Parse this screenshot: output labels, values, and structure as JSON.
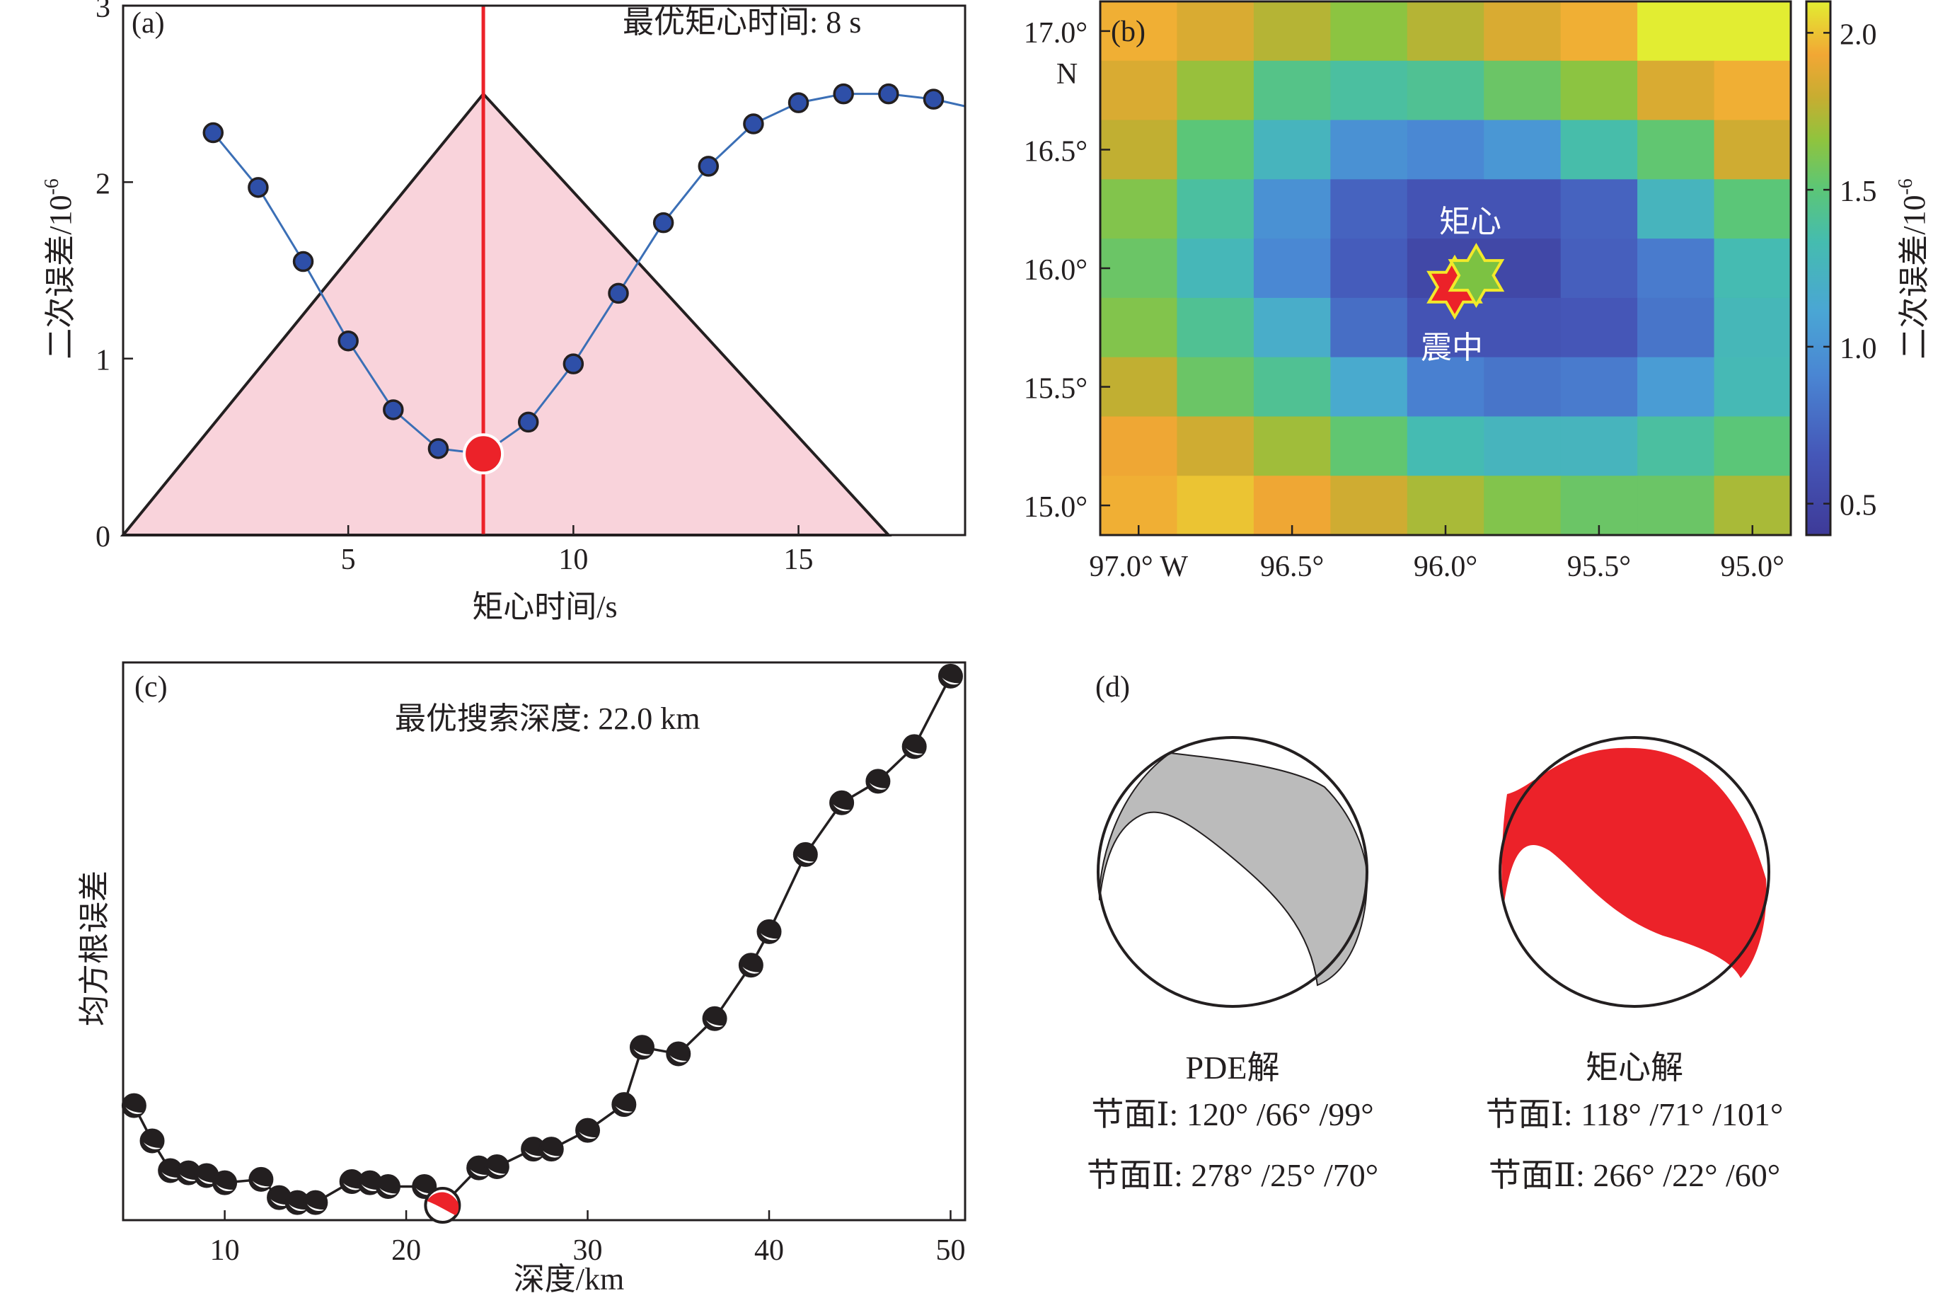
{
  "chart_data": [
    {
      "panel": "(a)",
      "type": "line",
      "title": "",
      "annotation": "最优矩心时间: 8 s",
      "xlabel": "矩心时间/s",
      "ylabel": "二次误差/10⁻⁶",
      "xlim": [
        0,
        18.7
      ],
      "ylim": [
        0,
        3
      ],
      "xticks": [
        5,
        10,
        15
      ],
      "yticks": [
        0,
        1,
        2,
        3
      ],
      "grid": false,
      "series": [
        {
          "name": "二次误差",
          "color": "#3b6fb6",
          "marker_color": "#2e4fa8",
          "x": [
            2,
            3,
            4,
            5,
            6,
            7,
            8,
            9,
            10,
            11,
            12,
            13,
            14,
            15,
            16,
            17,
            18,
            18.7
          ],
          "y": [
            2.28,
            1.97,
            1.55,
            1.1,
            0.71,
            0.49,
            0.46,
            0.64,
            0.97,
            1.37,
            1.77,
            2.09,
            2.33,
            2.45,
            2.5,
            2.5,
            2.47,
            2.43
          ],
          "markers_at": [
            2,
            3,
            4,
            5,
            6,
            7,
            9,
            10,
            11,
            12,
            13,
            14,
            15,
            16,
            17,
            18
          ]
        }
      ],
      "best": {
        "x": 8,
        "y": 0.46,
        "color": "#ec2229"
      },
      "vline": {
        "x": 8,
        "color": "#ec2229"
      },
      "source_time_function": {
        "type": "triangle",
        "x": [
          0,
          8,
          17
        ],
        "y": [
          0,
          2.5,
          0
        ],
        "fill": "#f9d3db"
      }
    },
    {
      "panel": "(b)",
      "type": "heatmap",
      "xlabel": "",
      "ylabel": "",
      "x_tick_labels": [
        "97.0° W",
        "96.5°",
        "96.0°",
        "95.5°",
        "95.0°"
      ],
      "x_tick_values": [
        -97.0,
        -96.5,
        -96.0,
        -95.5,
        -95.0
      ],
      "y_tick_labels": [
        "17.0°",
        "16.5°",
        "16.0°",
        "15.5°",
        "15.0°"
      ],
      "y_tick_values": [
        17.0,
        16.5,
        16.0,
        15.5,
        15.0
      ],
      "y_unit_label": "N",
      "grid_lon": [
        -97.0,
        -96.75,
        -96.5,
        -96.25,
        -96.0,
        -95.75,
        -95.5,
        -95.25,
        -95.0
      ],
      "grid_lat": [
        17.0,
        16.75,
        16.5,
        16.25,
        16.0,
        15.75,
        15.5,
        15.25,
        15.0
      ],
      "values": [
        [
          1.95,
          1.85,
          1.75,
          1.65,
          1.75,
          1.85,
          1.95,
          2.1,
          2.1
        ],
        [
          1.85,
          1.68,
          1.45,
          1.38,
          1.42,
          1.55,
          1.65,
          1.85,
          1.95
        ],
        [
          1.78,
          1.5,
          1.25,
          0.98,
          0.92,
          1.02,
          1.35,
          1.52,
          1.82
        ],
        [
          1.62,
          1.38,
          0.98,
          0.72,
          0.62,
          0.62,
          0.72,
          1.25,
          1.5
        ],
        [
          1.55,
          1.28,
          0.92,
          0.68,
          0.52,
          0.52,
          0.7,
          0.85,
          1.32
        ],
        [
          1.62,
          1.42,
          1.18,
          0.78,
          0.62,
          0.62,
          0.65,
          0.82,
          1.28
        ],
        [
          1.78,
          1.55,
          1.42,
          1.15,
          0.88,
          0.82,
          0.85,
          1.05,
          1.3
        ],
        [
          1.92,
          1.82,
          1.7,
          1.52,
          1.32,
          1.25,
          1.25,
          1.38,
          1.5
        ],
        [
          1.95,
          2.0,
          1.92,
          1.82,
          1.72,
          1.62,
          1.55,
          1.55,
          1.72
        ]
      ],
      "colorbar": {
        "label": "二次误差/10⁻⁶",
        "range": [
          0.4,
          2.1
        ],
        "ticks": [
          0.5,
          1.0,
          1.5,
          2.0
        ],
        "tick_labels": [
          "0.5",
          "1.0",
          "1.5",
          "2.0"
        ],
        "colormap": "parula"
      },
      "markers": [
        {
          "name": "矩心",
          "label": "矩心",
          "lon": -95.9,
          "lat": 15.97,
          "shape": "hexagram",
          "color": "#7cc242",
          "edge": "#f2e92a"
        },
        {
          "name": "震中",
          "label": "震中",
          "lon": -95.97,
          "lat": 15.92,
          "shape": "hexagram",
          "color": "#ec2229",
          "edge": "#f2e92a"
        }
      ]
    },
    {
      "panel": "(c)",
      "type": "line",
      "annotation": "最优搜索深度: 22.0 km",
      "xlabel": "深度/km",
      "ylabel": "均方根误差",
      "xlim": [
        4.4,
        50.8
      ],
      "ylim_relative": [
        0,
        1
      ],
      "xticks": [
        10,
        20,
        30,
        40,
        50
      ],
      "yticks": [],
      "grid": false,
      "series": [
        {
          "name": "均方根误差 (relative)",
          "color": "#231f20",
          "x": [
            5,
            6,
            7,
            8,
            9,
            10,
            12,
            13,
            14,
            15,
            17,
            18,
            19,
            21,
            22,
            24,
            25,
            27,
            28,
            30,
            32,
            33,
            35,
            37,
            39,
            40,
            42,
            44,
            46,
            48,
            50
          ],
          "y": [
            0.208,
            0.144,
            0.09,
            0.086,
            0.081,
            0.068,
            0.074,
            0.041,
            0.032,
            0.032,
            0.07,
            0.068,
            0.061,
            0.061,
            0.027,
            0.095,
            0.097,
            0.129,
            0.129,
            0.163,
            0.21,
            0.314,
            0.302,
            0.366,
            0.463,
            0.524,
            0.664,
            0.758,
            0.797,
            0.86,
            0.988
          ]
        }
      ],
      "best": {
        "x": 22,
        "color": "#ec2229"
      }
    },
    {
      "panel": "(d)",
      "type": "focal-mechanism",
      "solutions": [
        {
          "title": "PDE解",
          "fill": "#bbbbbb",
          "plane1_label": "节面Ⅰ",
          "plane1": "120° /66° /99°",
          "plane2_label": "节面Ⅱ",
          "plane2": "278° /25° /70°"
        },
        {
          "title": "矩心解",
          "fill": "#ec2229",
          "plane1_label": "节面Ⅰ",
          "plane1": "118° /71° /101°",
          "plane2_label": "节面Ⅱ",
          "plane2": "266° /22° /60°"
        }
      ]
    }
  ],
  "panels": {
    "a": {
      "label": "(a)",
      "annotation": "最优矩心时间: 8 s",
      "xlabel": "矩心时间/s",
      "ylabel_main": "二次误差/10",
      "ylabel_exp": "-6"
    },
    "b": {
      "label": "(b)",
      "y_unit": "N",
      "centroid_label": "矩心",
      "epicenter_label": "震中",
      "cbar_label_main": "二次误差/10",
      "cbar_label_exp": "-6"
    },
    "c": {
      "label": "(c)",
      "annotation": "最优搜索深度: 22.0 km",
      "xlabel": "深度/km",
      "ylabel": "均方根误差"
    },
    "d": {
      "label": "(d)",
      "pde": {
        "title": "PDE解",
        "line1": "节面Ⅰ: 120° /66° /99°",
        "line2": "节面Ⅱ: 278° /25° /70°"
      },
      "centroid": {
        "title": "矩心解",
        "line1": "节面Ⅰ: 118° /71° /101°",
        "line2": "节面Ⅱ: 266° /22° /60°"
      }
    }
  }
}
